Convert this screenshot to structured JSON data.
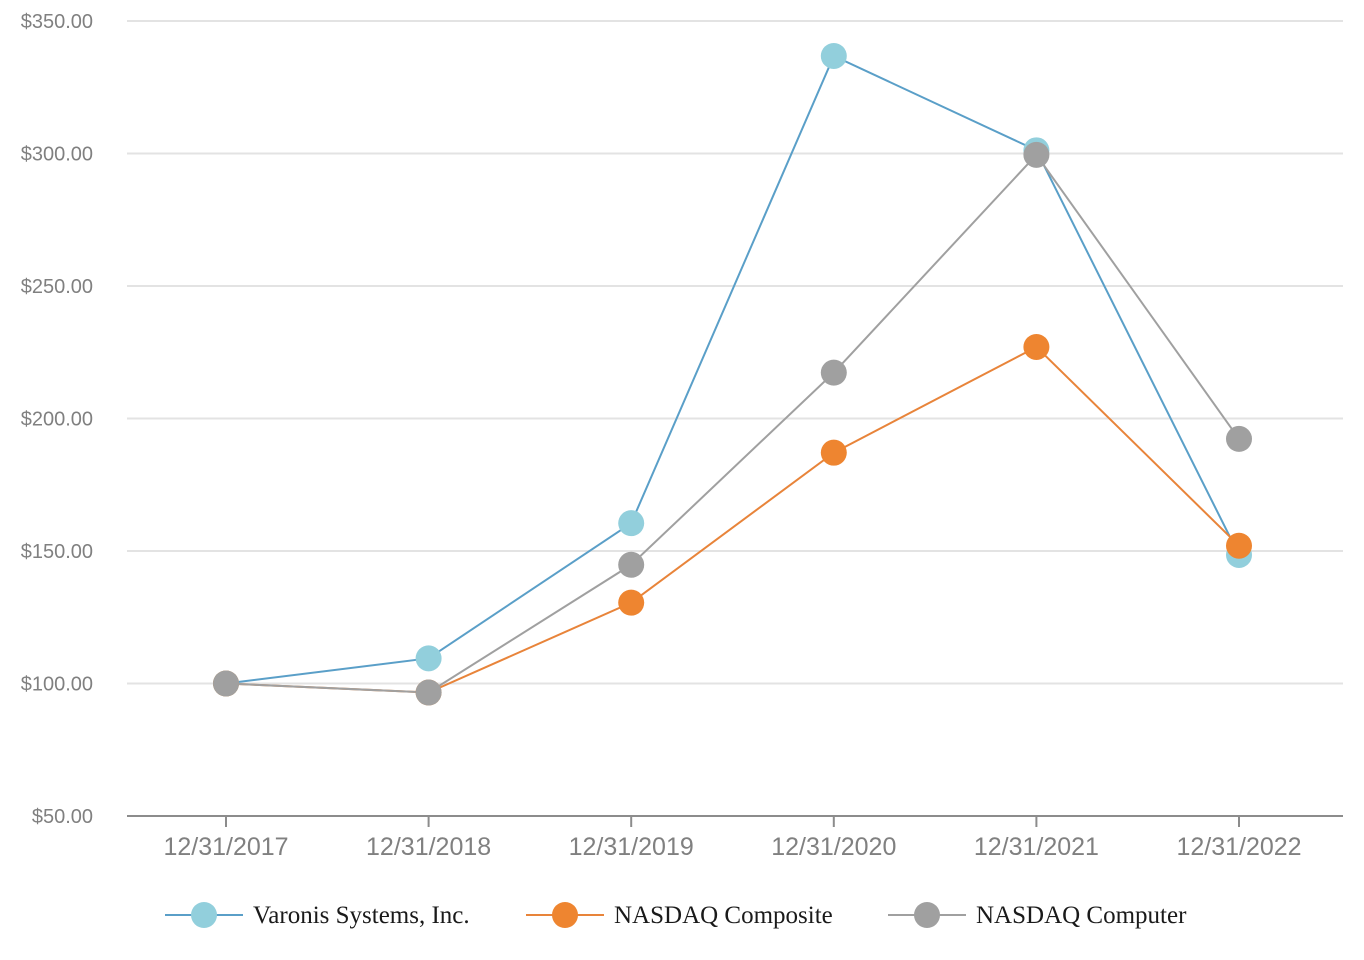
{
  "chart_data": {
    "type": "line",
    "title": "",
    "xlabel": "",
    "ylabel": "",
    "categories": [
      "12/31/2017",
      "12/31/2018",
      "12/31/2019",
      "12/31/2020",
      "12/31/2021",
      "12/31/2022"
    ],
    "ylim": [
      50,
      350
    ],
    "y_ticks": [
      50,
      100,
      150,
      200,
      250,
      300,
      350
    ],
    "y_tick_labels": [
      "$50.00",
      "$100.00",
      "$150.00",
      "$200.00",
      "$250.00",
      "$300.00",
      "$350.00"
    ],
    "grid": true,
    "legend_position": "bottom",
    "series": [
      {
        "name": "Varonis Systems, Inc.",
        "line_color": "#5a9fc8",
        "marker_color": "#92cfdc",
        "values": [
          100.0,
          109.5,
          160.5,
          336.8,
          301.2,
          148.5
        ]
      },
      {
        "name": "NASDAQ Composite",
        "line_color": "#e8843a",
        "marker_color": "#ee8530",
        "values": [
          100.0,
          96.6,
          130.5,
          187.1,
          227.0,
          152.0
        ]
      },
      {
        "name": "NASDAQ Computer",
        "line_color": "#a0a0a0",
        "marker_color": "#a0a0a0",
        "values": [
          100.0,
          96.6,
          144.8,
          217.3,
          299.5,
          192.3
        ]
      }
    ]
  }
}
